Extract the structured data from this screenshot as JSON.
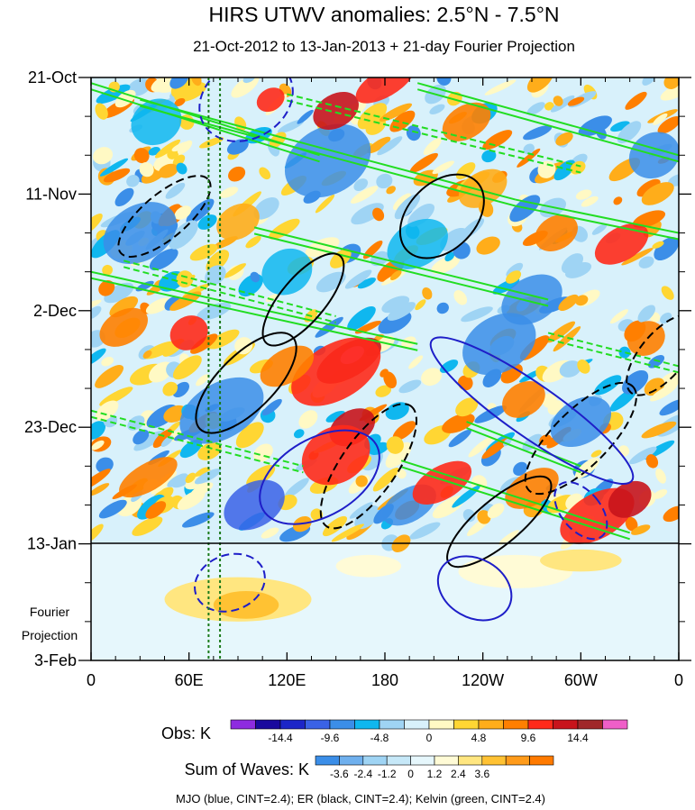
{
  "chart_data": {
    "type": "heatmap",
    "title": "HIRS UTWV anomalies: 2.5°N - 7.5°N",
    "subtitle": "21-Oct-2012 to 13-Jan-2013 + 21-day Fourier Projection",
    "x_ticks": [
      {
        "lon": 0,
        "label": "0"
      },
      {
        "lon": 60,
        "label": "60E"
      },
      {
        "lon": 120,
        "label": "120E"
      },
      {
        "lon": 180,
        "label": "180"
      },
      {
        "lon": 240,
        "label": "120W"
      },
      {
        "lon": 300,
        "label": "60W"
      },
      {
        "lon": 360,
        "label": "0"
      }
    ],
    "x_range": [
      0,
      360
    ],
    "y_ticks": [
      {
        "day": 0,
        "label": "21-Oct"
      },
      {
        "day": 21,
        "label": "11-Nov"
      },
      {
        "day": 42,
        "label": "2-Dec"
      },
      {
        "day": 63,
        "label": "23-Dec"
      },
      {
        "day": 84,
        "label": "13-Jan"
      },
      {
        "day": 105,
        "label": "3-Feb"
      }
    ],
    "y_range_days": [
      0,
      105
    ],
    "observation_end_day": 84,
    "fourier_label_line1": "Fourier",
    "fourier_label_line2": "Projection",
    "reference_lines_lon": [
      72,
      79
    ],
    "obs_colorbar": {
      "label": "Obs: K",
      "colors": [
        "#8e2ce0",
        "#1a0a9e",
        "#1c26c8",
        "#3a62e6",
        "#3b8ee8",
        "#0fb7ef",
        "#9fd4f4",
        "#d8f1fb",
        "#fff9c4",
        "#ffd633",
        "#ffad1a",
        "#ff7f00",
        "#ff2a1a",
        "#c8141c",
        "#a0282a",
        "#ef5fc8"
      ],
      "tick_labels": [
        "-14.4",
        "-9.6",
        "-4.8",
        "0",
        "4.8",
        "9.6",
        "14.4"
      ]
    },
    "waves_colorbar": {
      "label": "Sum of Waves: K",
      "colors": [
        "#3b8ee8",
        "#6fb0ee",
        "#9fd4f4",
        "#c6e8f8",
        "#e6f7fc",
        "#fffbd6",
        "#ffe680",
        "#ffc233",
        "#ff9b1a",
        "#ff7a00"
      ],
      "tick_labels": [
        "-3.6",
        "-2.4",
        "-1.2",
        "0",
        "1.2",
        "2.4",
        "3.6"
      ]
    },
    "contours_caption": "MJO (blue, CINT=2.4); ER (black, CINT=2.4); Kelvin (green, CINT=2.4)",
    "contour_colors": {
      "mjo": "#1e1ec8",
      "er": "#000000",
      "kelvin": "#22dd22"
    },
    "features": {
      "warm_blobs": [
        {
          "lon": 158,
          "day": 51,
          "rl": 22,
          "rd": 3,
          "c": "#c8141c"
        },
        {
          "lon": 160,
          "day": 50,
          "rl": 8,
          "rd": 1.3,
          "c": "#ef5fc8"
        },
        {
          "lon": 150,
          "day": 53,
          "rl": 30,
          "rd": 5,
          "c": "#ff2a1a"
        },
        {
          "lon": 120,
          "day": 52,
          "rl": 18,
          "rd": 3,
          "c": "#ff7f00"
        },
        {
          "lon": 160,
          "day": 63,
          "rl": 15,
          "rd": 3,
          "c": "#c8141c"
        },
        {
          "lon": 150,
          "day": 68,
          "rl": 22,
          "rd": 5,
          "c": "#ff2a1a"
        },
        {
          "lon": 310,
          "day": 79,
          "rl": 25,
          "rd": 4,
          "c": "#ff2a1a"
        },
        {
          "lon": 330,
          "day": 76,
          "rl": 14,
          "rd": 3,
          "c": "#c8141c"
        },
        {
          "lon": 270,
          "day": 74,
          "rl": 18,
          "rd": 3,
          "c": "#ff7f00"
        },
        {
          "lon": 215,
          "day": 73,
          "rl": 20,
          "rd": 3,
          "c": "#ff2a1a"
        },
        {
          "lon": 110,
          "day": 4,
          "rl": 9,
          "rd": 2,
          "c": "#ff2a1a"
        },
        {
          "lon": 150,
          "day": 6,
          "rl": 15,
          "rd": 3,
          "c": "#c8141c"
        },
        {
          "lon": 180,
          "day": 1,
          "rl": 20,
          "rd": 2.5,
          "c": "#ff2a1a"
        },
        {
          "lon": 230,
          "day": 8,
          "rl": 16,
          "rd": 3,
          "c": "#ff7f00"
        },
        {
          "lon": 325,
          "day": 30,
          "rl": 18,
          "rd": 3,
          "c": "#ff2a1a"
        },
        {
          "lon": 285,
          "day": 28,
          "rl": 14,
          "rd": 3,
          "c": "#ff7f00"
        },
        {
          "lon": 60,
          "day": 46,
          "rl": 12,
          "rd": 3,
          "c": "#ff2a1a"
        },
        {
          "lon": 265,
          "day": 58,
          "rl": 14,
          "rd": 3,
          "c": "#ff7f00"
        },
        {
          "lon": 20,
          "day": 45,
          "rl": 16,
          "rd": 3,
          "c": "#ff7f00"
        },
        {
          "lon": 35,
          "day": 72,
          "rl": 20,
          "rd": 2.5,
          "c": "#ff7f00"
        },
        {
          "lon": 340,
          "day": 47,
          "rl": 12,
          "rd": 3,
          "c": "#ff7f00"
        },
        {
          "lon": 240,
          "day": 20,
          "rl": 16,
          "rd": 3,
          "c": "#ffad1a"
        },
        {
          "lon": 90,
          "day": 26,
          "rl": 14,
          "rd": 3,
          "c": "#ffad1a"
        }
      ],
      "cool_blobs": [
        {
          "lon": 145,
          "day": 15,
          "rl": 28,
          "rd": 6,
          "c": "#3b8ee8"
        },
        {
          "lon": 30,
          "day": 28,
          "rl": 24,
          "rd": 5,
          "c": "#3b8ee8"
        },
        {
          "lon": 250,
          "day": 48,
          "rl": 24,
          "rd": 5,
          "c": "#3b8ee8"
        },
        {
          "lon": 80,
          "day": 60,
          "rl": 28,
          "rd": 5,
          "c": "#3b8ee8"
        },
        {
          "lon": 100,
          "day": 77,
          "rl": 20,
          "rd": 4,
          "c": "#3a62e6"
        },
        {
          "lon": 195,
          "day": 77,
          "rl": 18,
          "rd": 3,
          "c": "#3b8ee8"
        },
        {
          "lon": 300,
          "day": 62,
          "rl": 20,
          "rd": 4,
          "c": "#3b8ee8"
        },
        {
          "lon": 270,
          "day": 40,
          "rl": 20,
          "rd": 4,
          "c": "#3b8ee8"
        },
        {
          "lon": 345,
          "day": 14,
          "rl": 16,
          "rd": 4,
          "c": "#3b8ee8"
        },
        {
          "lon": 200,
          "day": 30,
          "rl": 20,
          "rd": 4,
          "c": "#0fb7ef"
        },
        {
          "lon": 120,
          "day": 35,
          "rl": 16,
          "rd": 4,
          "c": "#0fb7ef"
        },
        {
          "lon": 40,
          "day": 8,
          "rl": 16,
          "rd": 4,
          "c": "#0fb7ef"
        }
      ],
      "projection_blobs": [
        {
          "lon": 90,
          "day": 94,
          "rl": 45,
          "rd": 4,
          "c": "#ffe680"
        },
        {
          "lon": 95,
          "day": 95,
          "rl": 20,
          "rd": 2.5,
          "c": "#ffc233"
        },
        {
          "lon": 260,
          "day": 89,
          "rl": 35,
          "rd": 3,
          "c": "#fffbd6"
        },
        {
          "lon": 300,
          "day": 87,
          "rl": 25,
          "rd": 2,
          "c": "#ffe680"
        },
        {
          "lon": 170,
          "day": 88,
          "rl": 20,
          "rd": 2,
          "c": "#fffbd6"
        }
      ],
      "mjo_contours": [
        {
          "lon": 270,
          "day": 60,
          "rl": 16,
          "rd": 22,
          "rot": -55
        },
        {
          "lon": 95,
          "day": 4,
          "rl": 30,
          "rd": 7,
          "rot": -30
        },
        {
          "lon": 140,
          "day": 72,
          "rl": 40,
          "rd": 7,
          "rot": -30
        },
        {
          "lon": 85,
          "day": 91,
          "rl": 22,
          "rd": 5,
          "rot": -20
        },
        {
          "lon": 235,
          "day": 92,
          "rl": 18,
          "rd": 7,
          "rot": -60
        },
        {
          "lon": 300,
          "day": 78,
          "rl": 12,
          "rd": 6,
          "rot": -40
        }
      ],
      "er_contours": [
        {
          "lon": 95,
          "day": 55,
          "rl": 40,
          "rd": 5,
          "rot": -45
        },
        {
          "lon": 170,
          "day": 70,
          "rl": 45,
          "rd": 5,
          "rot": -55
        },
        {
          "lon": 215,
          "day": 25,
          "rl": 30,
          "rd": 6,
          "rot": -45
        },
        {
          "lon": 300,
          "day": 65,
          "rl": 45,
          "rd": 5,
          "rot": -45
        },
        {
          "lon": 250,
          "day": 80,
          "rl": 40,
          "rd": 4,
          "rot": -40
        },
        {
          "lon": 45,
          "day": 25,
          "rl": 35,
          "rd": 4,
          "rot": -40
        },
        {
          "lon": 130,
          "day": 40,
          "rl": 35,
          "rd": 4,
          "rot": -50
        },
        {
          "lon": 350,
          "day": 50,
          "rl": 30,
          "rd": 4,
          "rot": -50
        }
      ],
      "kelvin_lines": [
        {
          "lon1": 0,
          "day1": 1,
          "lon2": 140,
          "day2": 14
        },
        {
          "lon1": 30,
          "day1": 4,
          "lon2": 260,
          "day2": 22
        },
        {
          "lon1": 120,
          "day1": 3,
          "lon2": 300,
          "day2": 16
        },
        {
          "lon1": 200,
          "day1": 1,
          "lon2": 360,
          "day2": 14
        },
        {
          "lon1": 0,
          "day1": 35,
          "lon2": 200,
          "day2": 48
        },
        {
          "lon1": 20,
          "day1": 33,
          "lon2": 150,
          "day2": 43
        },
        {
          "lon1": 100,
          "day1": 27,
          "lon2": 280,
          "day2": 40
        },
        {
          "lon1": 260,
          "day1": 22,
          "lon2": 360,
          "day2": 28
        },
        {
          "lon1": 0,
          "day1": 60,
          "lon2": 130,
          "day2": 70
        },
        {
          "lon1": 190,
          "day1": 69,
          "lon2": 330,
          "day2": 82
        },
        {
          "lon1": 230,
          "day1": 62,
          "lon2": 300,
          "day2": 70
        },
        {
          "lon1": 280,
          "day1": 46,
          "lon2": 360,
          "day2": 52
        }
      ]
    }
  }
}
